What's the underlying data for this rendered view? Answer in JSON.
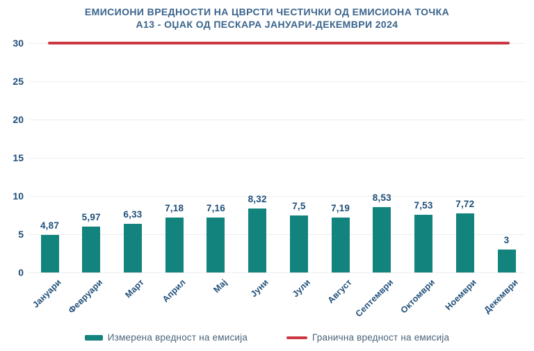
{
  "title": {
    "line1": "ЕМИСИОНИ ВРЕДНОСТИ НА ЦВРСТИ ЧЕСТИЧКИ ОД ЕМИСИОНА ТОЧКА",
    "line2": "А13 - ОЏАК ОД ПЕСКАРА ЈАНУАРИ-ДЕКЕМВРИ 2024"
  },
  "colors": {
    "bar": "#12837D",
    "limit_line": "#CC3744",
    "title_text": "#3A648C",
    "axis_text": "#1F4E79",
    "legend_text": "#4A6379",
    "gridline": "#EDEDED",
    "background": "#FFFFFF"
  },
  "chart_data": {
    "type": "bar",
    "title": "ЕМИСИОНИ ВРЕДНОСТИ НА ЦВРСТИ ЧЕСТИЧКИ ОД ЕМИСИОНА ТОЧКА А13 - ОЏАК ОД ПЕСКАРА ЈАНУАРИ-ДЕКЕМВРИ 2024",
    "categories": [
      "Јануари",
      "Февруари",
      "Март",
      "Април",
      "Мај",
      "Јуни",
      "Јули",
      "Август",
      "Септември",
      "Октомври",
      "Ноември",
      "Декември"
    ],
    "series": [
      {
        "name": "Измерена вредност на емисија",
        "type": "bar",
        "values": [
          4.87,
          5.97,
          6.33,
          7.18,
          7.16,
          8.32,
          7.5,
          7.19,
          8.53,
          7.53,
          7.72,
          3
        ]
      },
      {
        "name": "Гранична вредност на емисија",
        "type": "line",
        "value": 30
      }
    ],
    "value_labels": [
      "4,87",
      "5,97",
      "6,33",
      "7,18",
      "7,16",
      "8,32",
      "7,5",
      "7,19",
      "8,53",
      "7,53",
      "7,72",
      "3"
    ],
    "yticks": [
      0,
      5,
      10,
      15,
      20,
      25,
      30
    ],
    "ylim": [
      0,
      30
    ],
    "xlabel": "",
    "ylabel": "",
    "grid": true,
    "legend_position": "bottom"
  },
  "legend": {
    "measured": "Измерена вредност на емисија",
    "limit": "Гранична вредност на емисија"
  }
}
